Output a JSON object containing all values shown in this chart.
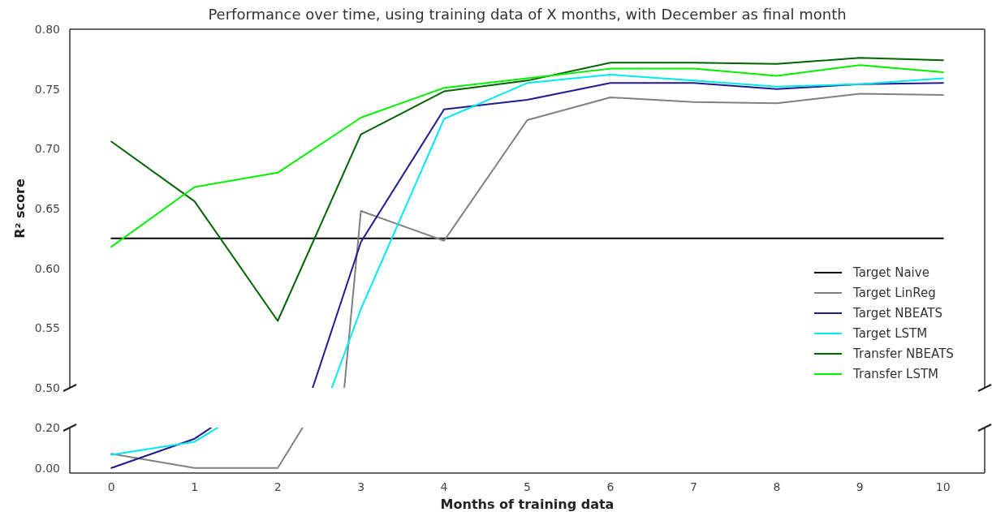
{
  "chart_data": [
    {
      "type": "line",
      "title": "Performance over time, using training data of X months, with December as final month",
      "ylabel": "R² score",
      "x": [
        0,
        1,
        2,
        3,
        4,
        5,
        6,
        7,
        8,
        9,
        10
      ],
      "xlim": [
        -0.5,
        10.5
      ],
      "xticks": [
        0,
        1,
        2,
        3,
        4,
        5,
        6,
        7,
        8,
        9,
        10
      ],
      "ylim": [
        0.5,
        0.8
      ],
      "yticks": [
        {
          "value": 0.5,
          "label": "0.50"
        },
        {
          "value": 0.55,
          "label": "0.55"
        },
        {
          "value": 0.6,
          "label": "0.60"
        },
        {
          "value": 0.65,
          "label": "0.65"
        },
        {
          "value": 0.7,
          "label": "0.70"
        },
        {
          "value": 0.75,
          "label": "0.75"
        },
        {
          "value": 0.8,
          "label": "0.80"
        }
      ],
      "tick_labels": "y",
      "grid": false,
      "legend": "bottom right",
      "series": [
        {
          "name": "Target Naive",
          "color": "#000000",
          "values": [
            0.625,
            0.625,
            0.625,
            0.625,
            0.625,
            0.625,
            0.625,
            0.625,
            0.625,
            0.625,
            0.625
          ]
        },
        {
          "name": "Target LinReg",
          "color": "#808080",
          "x": [
            2.8,
            3,
            4,
            5,
            6,
            7,
            8,
            9,
            10
          ],
          "values": [
            0.5,
            0.648,
            0.623,
            0.724,
            0.743,
            0.739,
            0.738,
            0.746,
            0.745
          ]
        },
        {
          "name": "Target NBEATS",
          "color": "#1f1a8f",
          "x": [
            2.42,
            3,
            4,
            5,
            6,
            7,
            8,
            9,
            10
          ],
          "values": [
            0.5,
            0.622,
            0.733,
            0.741,
            0.755,
            0.755,
            0.75,
            0.754,
            0.755
          ]
        },
        {
          "name": "Target LSTM",
          "color": "#00e8f0",
          "x": [
            2.65,
            3,
            4,
            5,
            6,
            7,
            8,
            9,
            10
          ],
          "values": [
            0.5,
            0.566,
            0.725,
            0.755,
            0.762,
            0.757,
            0.752,
            0.754,
            0.759
          ]
        },
        {
          "name": "Transfer NBEATS",
          "color": "#006400",
          "values": [
            0.706,
            0.656,
            0.556,
            0.712,
            0.748,
            0.757,
            0.772,
            0.772,
            0.771,
            0.776,
            0.774
          ]
        },
        {
          "name": "Transfer LSTM",
          "color": "#00f000",
          "values": [
            0.618,
            0.668,
            0.68,
            0.726,
            0.751,
            0.759,
            0.767,
            0.767,
            0.761,
            0.77,
            0.764
          ]
        }
      ]
    },
    {
      "type": "line",
      "xlabel": "Months of training data",
      "xlim": [
        -0.5,
        10.5
      ],
      "xticks": [
        0,
        1,
        2,
        3,
        4,
        5,
        6,
        7,
        8,
        9,
        10
      ],
      "ylim": [
        -0.025,
        0.2
      ],
      "yticks": [
        {
          "value": 0,
          "label": "0.00"
        },
        {
          "value": 0.2,
          "label": "0.20"
        }
      ],
      "grid": false,
      "legend": false,
      "series": [
        {
          "color": "#808080",
          "x": [
            0,
            1,
            2,
            2.3
          ],
          "values": [
            0.07,
            0.0,
            0.0,
            0.2
          ]
        },
        {
          "color": "#1f1a8f",
          "x": [
            0,
            1,
            1.2
          ],
          "values": [
            0.0,
            0.145,
            0.2
          ]
        },
        {
          "color": "#00e8f0",
          "x": [
            0,
            1,
            1.28
          ],
          "values": [
            0.065,
            0.13,
            0.2
          ]
        }
      ]
    }
  ]
}
